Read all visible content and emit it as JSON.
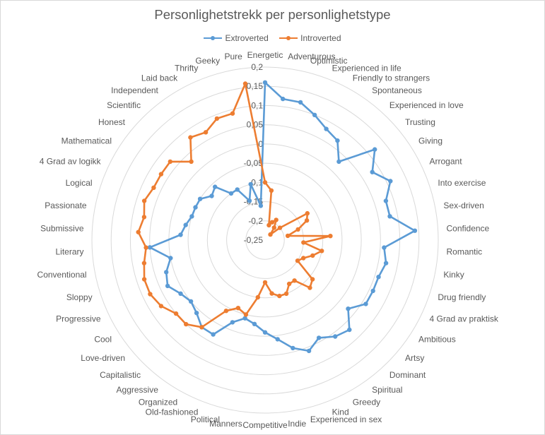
{
  "chart_data": {
    "type": "radar",
    "title": "Personlighetstrekk per personlighetstype",
    "categories": [
      "Energetic",
      "Adventurous",
      "Optimistic",
      "Experienced in life",
      "Friendly to strangers",
      "Spontaneous",
      "Experienced in love",
      "Trusting",
      "Giving",
      "Arrogant",
      "Into exercise",
      "Sex-driven",
      "Confidence",
      "Romantic",
      "Kinky",
      "Drug friendly",
      "4 Grad av praktisk",
      "Ambitious",
      "Artsy",
      "Dominant",
      "Spiritual",
      "Greedy",
      "Kind",
      "Experienced in sex",
      "Indie",
      "Competitive",
      "Manners",
      "Political",
      "Old-fashioned",
      "Organized",
      "Aggressive",
      "Capitalistic",
      "Love-driven",
      "Cool",
      "Progressive",
      "Sloppy",
      "Conventional",
      "Literary",
      "Submissive",
      "Passionate",
      "Logical",
      "4 Grad av logikk",
      "Mathematical",
      "Honest",
      "Scientific",
      "Independent",
      "Laid back",
      "Thrifty",
      "Geeky",
      "Pure"
    ],
    "series": [
      {
        "name": "Extroverted",
        "color": "#5b9bd5",
        "values": [
          0.16,
          0.12,
          0.12,
          0.1,
          0.08,
          0.07,
          0.03,
          0.12,
          0.08,
          0.11,
          0.08,
          0.08,
          0.14,
          0.06,
          0.07,
          0.06,
          0.06,
          0.06,
          0.03,
          0.07,
          0.06,
          0.04,
          0.06,
          0.04,
          0.01,
          -0.01,
          -0.03,
          -0.04,
          -0.02,
          0.03,
          0.03,
          0.01,
          0.0,
          0.01,
          0.03,
          0.02,
          0.0,
          0.05,
          -0.03,
          -0.04,
          -0.05,
          -0.05,
          -0.05,
          -0.07,
          -0.06,
          -0.1,
          -0.1,
          -0.14,
          -0.1,
          -0.16
        ]
      },
      {
        "name": "Introverted",
        "color": "#ed7d31",
        "values": [
          -0.1,
          -0.12,
          -0.21,
          -0.2,
          -0.19,
          -0.21,
          -0.23,
          -0.2,
          -0.12,
          -0.13,
          -0.16,
          -0.19,
          -0.08,
          -0.15,
          -0.1,
          -0.12,
          -0.14,
          -0.15,
          -0.09,
          -0.08,
          -0.12,
          -0.12,
          -0.1,
          -0.1,
          -0.11,
          -0.14,
          -0.1,
          -0.05,
          -0.06,
          -0.04,
          0.03,
          0.05,
          0.05,
          0.07,
          0.08,
          0.08,
          0.07,
          0.06,
          0.08,
          0.07,
          0.08,
          0.07,
          0.07,
          0.07,
          0.03,
          0.08,
          0.07,
          0.09,
          0.09,
          0.16
        ]
      }
    ],
    "radial_ticks": [
      "0,2",
      "0,15",
      "0,1",
      "0,05",
      "0",
      "-0,05",
      "-0,1",
      "-0,15",
      "-0,2",
      "-0,25"
    ],
    "radial_range": [
      -0.25,
      0.2
    ],
    "legend_position": "top"
  }
}
